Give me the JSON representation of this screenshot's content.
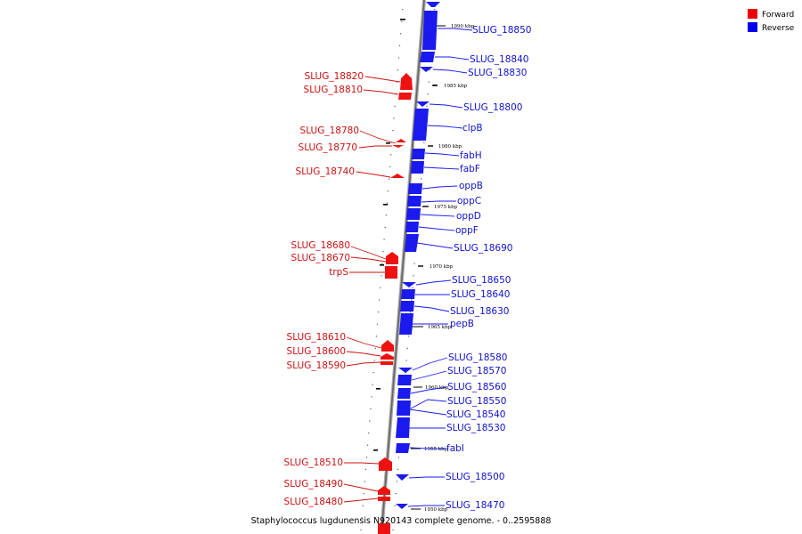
{
  "legend": [
    {
      "label": "Forward",
      "color": "#ee0000"
    },
    {
      "label": "Reverse",
      "color": "#0000ee"
    }
  ],
  "caption": "Staphylococcus lugdunensis N920143 complete genome. - 0..2595888",
  "ticks": [
    "1990 kbp",
    "1985 kbp",
    "1980 kbp",
    "1975 kbp",
    "1970 kbp",
    "1965 kbp",
    "1960 kbp",
    "1955 kbp",
    "1950 kbp"
  ],
  "forward_genes": [
    "SLUG_18820",
    "SLUG_18810",
    "SLUG_18780",
    "SLUG_18770",
    "SLUG_18740",
    "SLUG_18680",
    "SLUG_18670",
    "trpS",
    "SLUG_18610",
    "SLUG_18600",
    "SLUG_18590",
    "SLUG_18510",
    "SLUG_18490",
    "SLUG_18480"
  ],
  "reverse_genes": [
    "SLUG_18850",
    "SLUG_18840",
    "SLUG_18830",
    "SLUG_18800",
    "clpB",
    "fabH",
    "fabF",
    "oppB",
    "oppC",
    "oppD",
    "oppF",
    "SLUG_18690",
    "SLUG_18650",
    "SLUG_18640",
    "SLUG_18630",
    "pepB",
    "SLUG_18580",
    "SLUG_18570",
    "SLUG_18560",
    "SLUG_18550",
    "SLUG_18540",
    "SLUG_18530",
    "fabI",
    "SLUG_18500",
    "SLUG_18470"
  ],
  "colors": {
    "forward": "#ee1111",
    "reverse": "#1a1aee",
    "forward_text": "#cc1111",
    "reverse_text": "#1111cc",
    "axis": "#888888"
  }
}
